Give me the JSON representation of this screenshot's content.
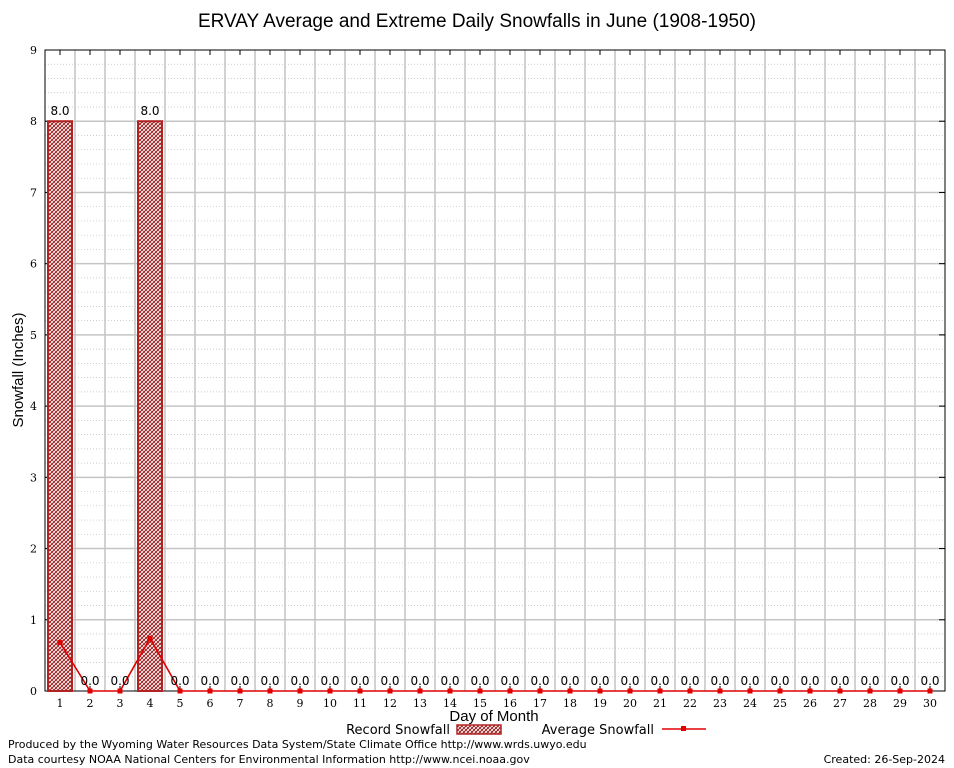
{
  "chart_data": {
    "type": "bar",
    "title": "ERVAY Average and Extreme Daily Snowfalls in June (1908-1950)",
    "xlabel": "Day of Month",
    "ylabel": "Snowfall (Inches)",
    "categories": [
      "1",
      "2",
      "3",
      "4",
      "5",
      "6",
      "7",
      "8",
      "9",
      "10",
      "11",
      "12",
      "13",
      "14",
      "15",
      "16",
      "17",
      "18",
      "19",
      "20",
      "21",
      "22",
      "23",
      "24",
      "25",
      "26",
      "27",
      "28",
      "29",
      "30"
    ],
    "ylim": [
      0,
      9
    ],
    "yticks": [
      "0",
      "1",
      "2",
      "3",
      "4",
      "5",
      "6",
      "7",
      "8",
      "9"
    ],
    "grid": true,
    "legend_position": "bottom",
    "series": [
      {
        "name": "Record Snowfall",
        "kind": "bar",
        "color": "#b22222",
        "values": [
          8.0,
          0.0,
          0.0,
          8.0,
          0.0,
          0.0,
          0.0,
          0.0,
          0.0,
          0.0,
          0.0,
          0.0,
          0.0,
          0.0,
          0.0,
          0.0,
          0.0,
          0.0,
          0.0,
          0.0,
          0.0,
          0.0,
          0.0,
          0.0,
          0.0,
          0.0,
          0.0,
          0.0,
          0.0,
          0.0
        ],
        "labels": [
          "8.0",
          "0.0",
          "0.0",
          "8.0",
          "0.0",
          "0.0",
          "0.0",
          "0.0",
          "0.0",
          "0.0",
          "0.0",
          "0.0",
          "0.0",
          "0.0",
          "0.0",
          "0.0",
          "0.0",
          "0.0",
          "0.0",
          "0.0",
          "0.0",
          "0.0",
          "0.0",
          "0.0",
          "0.0",
          "0.0",
          "0.0",
          "0.0",
          "0.0",
          "0.0"
        ]
      },
      {
        "name": "Average Snowfall",
        "kind": "line",
        "color": "#e00000",
        "values": [
          0.68,
          0.0,
          0.0,
          0.74,
          0.0,
          0.0,
          0.0,
          0.0,
          0.0,
          0.0,
          0.0,
          0.0,
          0.0,
          0.0,
          0.0,
          0.0,
          0.0,
          0.0,
          0.0,
          0.0,
          0.0,
          0.0,
          0.0,
          0.0,
          0.0,
          0.0,
          0.0,
          0.0,
          0.0,
          0.0
        ]
      }
    ]
  },
  "footer": {
    "produced_by": "Produced by the Wyoming Water Resources Data System/State Climate Office http://www.wrds.uwyo.edu",
    "courtesy": "Data courtesy NOAA National Centers for Environmental Information http://www.ncei.noaa.gov",
    "created": "Created: 26-Sep-2024"
  }
}
